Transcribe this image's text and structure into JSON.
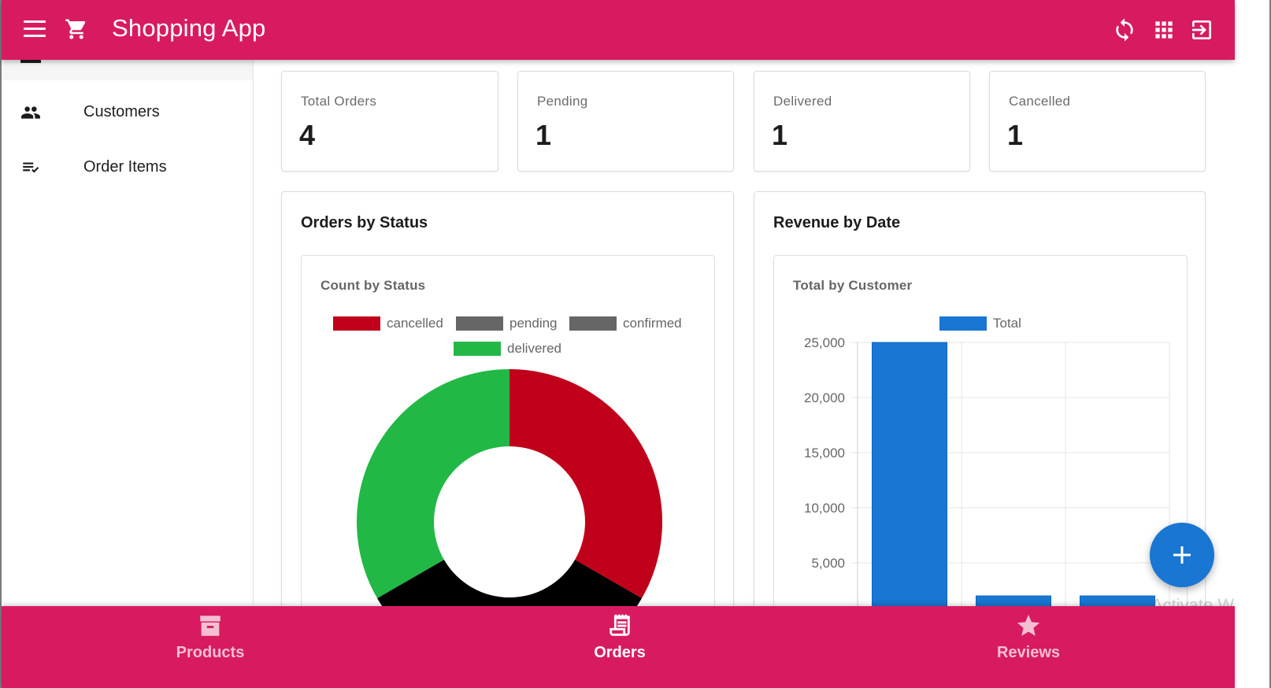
{
  "app": {
    "title": "Shopping App"
  },
  "appbar": {
    "icons": [
      "menu-icon",
      "cart-icon",
      "refresh-icon",
      "apps-grid-icon",
      "logout-icon"
    ]
  },
  "drawer": {
    "items": [
      {
        "label": "Customers",
        "icon": "people-icon"
      },
      {
        "label": "Order Items",
        "icon": "checklist-icon"
      }
    ]
  },
  "stats": [
    {
      "label": "Total Orders",
      "value": "4"
    },
    {
      "label": "Pending",
      "value": "1"
    },
    {
      "label": "Delivered",
      "value": "1"
    },
    {
      "label": "Cancelled",
      "value": "1"
    }
  ],
  "panels": {
    "status": {
      "title": "Orders by Status",
      "chart_title": "Count by Status"
    },
    "revenue": {
      "title": "Revenue by Date",
      "chart_title": "Total by Customer"
    }
  },
  "chart_data": [
    {
      "type": "pie",
      "title": "Count by Status",
      "categories": [
        "cancelled",
        "pending",
        "confirmed",
        "delivered"
      ],
      "values": [
        1,
        1,
        0,
        1
      ],
      "colors": [
        "#c0001a",
        "#000000",
        "#666666",
        "#22b845"
      ],
      "legend_colors": [
        "#c0001a",
        "#666666",
        "#666666",
        "#22b845"
      ],
      "legend": "top",
      "donut": true
    },
    {
      "type": "bar",
      "title": "Total by Customer",
      "series": [
        {
          "name": "Total",
          "values": [
            25000,
            2000,
            2000
          ],
          "color": "#1976d2"
        }
      ],
      "yticks": [
        "25,000",
        "20,000",
        "15,000",
        "10,000",
        "5,000"
      ],
      "ylim": [
        0,
        25000
      ],
      "grid": true,
      "legend": "top"
    }
  ],
  "bottom_nav": {
    "items": [
      {
        "label": "Products",
        "icon": "archive-icon",
        "active": false
      },
      {
        "label": "Orders",
        "icon": "receipt-icon",
        "active": true
      },
      {
        "label": "Reviews",
        "icon": "star-icon",
        "active": false
      }
    ]
  },
  "watermark": "Activate W"
}
